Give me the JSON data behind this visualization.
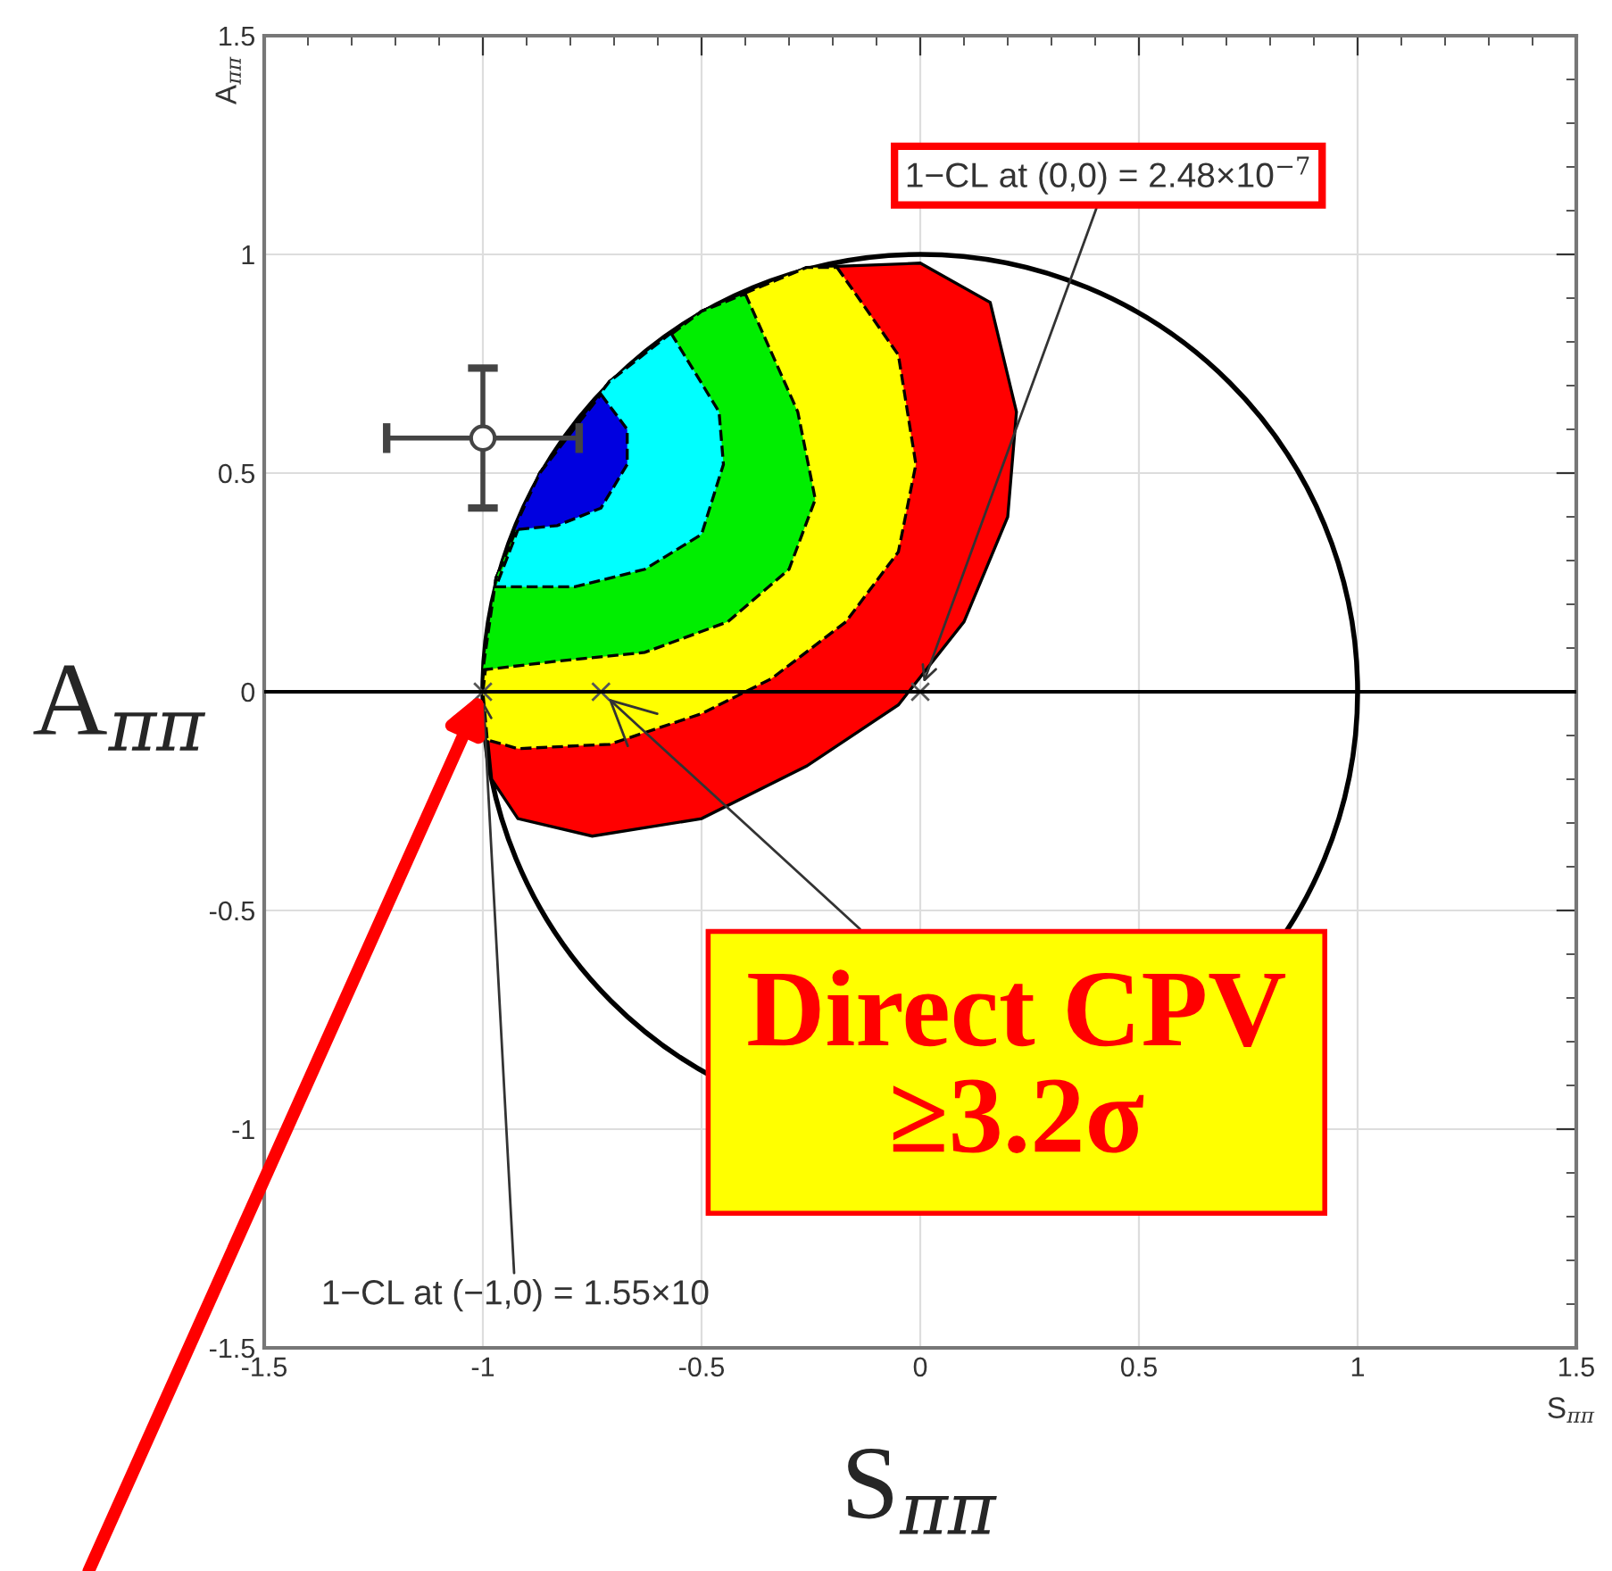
{
  "chart_data": {
    "type": "area",
    "xlabel": "S$_{ππ}$",
    "ylabel": "A$_{ππ}$",
    "xlim": [
      -1.5,
      1.5
    ],
    "ylim": [
      -1.5,
      1.5
    ],
    "xticks": [
      -1.5,
      -1,
      -0.5,
      0,
      0.5,
      1,
      1.5
    ],
    "yticks": [
      -1.5,
      -1,
      -0.5,
      0,
      0.5,
      1,
      1.5
    ],
    "grid": true,
    "series": [
      {
        "color": "#ff0000",
        "line_style": "solid",
        "x": [
          0,
          0.16,
          0.22,
          0.2,
          0.1,
          -0.05,
          -0.26,
          -0.5,
          -0.75,
          -0.92,
          -0.98,
          -1,
          -0.97,
          -0.87,
          -0.71,
          -0.5,
          -0.26
        ],
        "values": [
          0.98,
          0.89,
          0.64,
          0.4,
          0.16,
          -0.03,
          -0.17,
          -0.29,
          -0.33,
          -0.29,
          -0.2,
          0,
          0.26,
          0.5,
          0.71,
          0.87,
          0.97
        ]
      },
      {
        "color": "#ffff00",
        "line_style": "dashed",
        "x": [
          -0.19,
          -0.05,
          -0.01,
          -0.05,
          -0.17,
          -0.34,
          -0.5,
          -0.71,
          -0.92,
          -0.99,
          -1,
          -0.97,
          -0.87,
          -0.71,
          -0.5,
          -0.26
        ],
        "values": [
          0.97,
          0.77,
          0.52,
          0.32,
          0.16,
          0.03,
          -0.05,
          -0.12,
          -0.13,
          -0.11,
          0,
          0.26,
          0.5,
          0.71,
          0.87,
          0.97
        ]
      },
      {
        "color": "#00ee00",
        "line_style": "dashed",
        "x": [
          -0.4,
          -0.28,
          -0.24,
          -0.3,
          -0.44,
          -0.63,
          -0.83,
          -1,
          -0.97,
          -0.87,
          -0.71,
          -0.5
        ],
        "values": [
          0.91,
          0.64,
          0.44,
          0.28,
          0.16,
          0.09,
          0.07,
          0.05,
          0.26,
          0.5,
          0.71,
          0.87
        ]
      },
      {
        "color": "#00ffff",
        "line_style": "dashed",
        "x": [
          -0.57,
          -0.46,
          -0.45,
          -0.5,
          -0.63,
          -0.79,
          -0.97,
          -0.87,
          -0.71
        ],
        "values": [
          0.82,
          0.64,
          0.52,
          0.36,
          0.28,
          0.24,
          0.24,
          0.5,
          0.71
        ]
      },
      {
        "color": "#0000e0",
        "line_style": "dashed",
        "x": [
          -0.73,
          -0.67,
          -0.67,
          -0.73,
          -0.83,
          -0.93,
          -0.87
        ],
        "values": [
          0.68,
          0.6,
          0.52,
          0.42,
          0.38,
          0.37,
          0.5
        ]
      },
      {
        "type": "scatter",
        "color": "#555555",
        "marker": "cross",
        "x": [
          -1,
          -0.73,
          0
        ],
        "values": [
          0,
          0,
          0
        ]
      },
      {
        "type": "scatter",
        "color": "#444444",
        "marker": "circle",
        "x": [
          -1.0
        ],
        "values": [
          0.58
        ],
        "errors": [
          0.16
        ],
        "xerrors": [
          0.22
        ]
      }
    ],
    "ref_lines": [
      {
        "axis": "y",
        "value": 0,
        "color": "#000000"
      }
    ],
    "annotations": [
      {
        "text": "1−CL at (0,0) = 2.48×10$^{−7}$",
        "x": 0,
        "y": 0
      },
      {
        "text": "1−CL at (−1,0) = 1.55×10",
        "x": -1,
        "y": 0
      },
      {
        "text": "Direct CPV\n≥3.2σ",
        "x": -0.73,
        "y": 0
      },
      "A$_{ππ}$",
      "S$_{ππ}$"
    ]
  }
}
